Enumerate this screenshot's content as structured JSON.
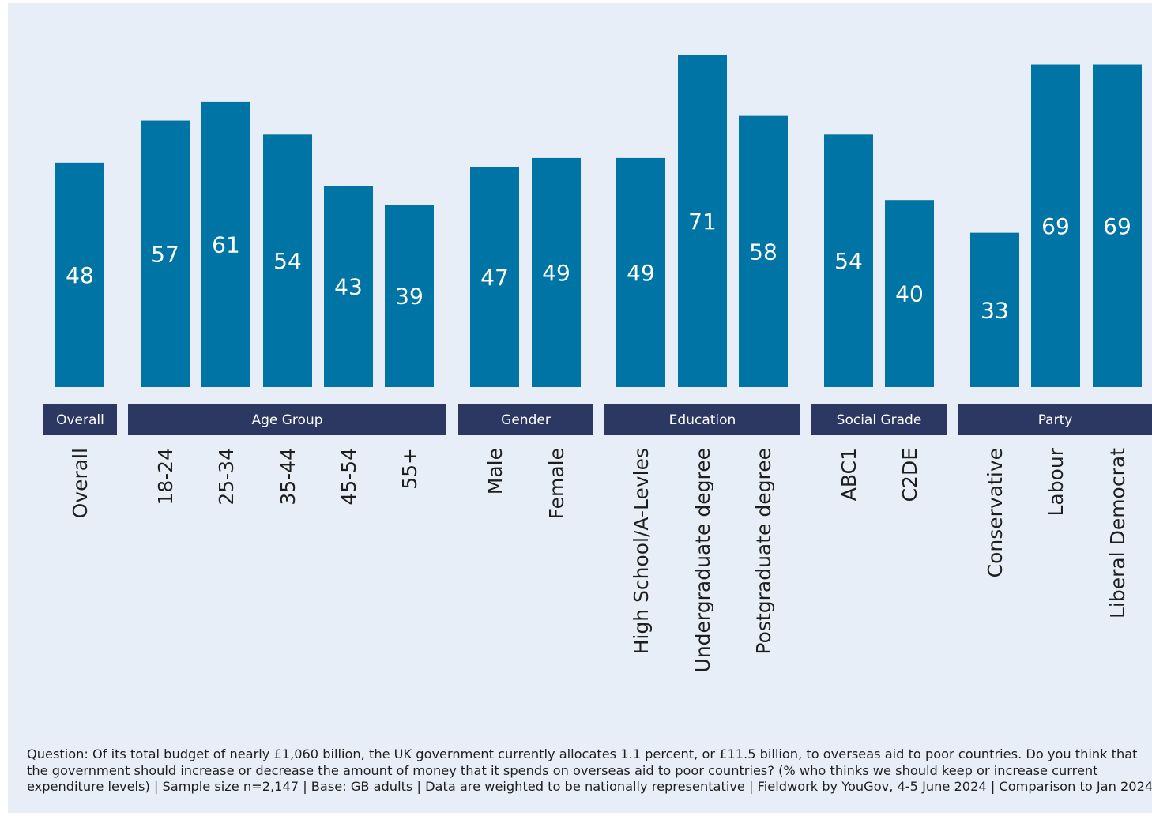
{
  "chart_data": {
    "type": "bar",
    "title": "",
    "xlabel": "",
    "ylabel": "",
    "ylim": [
      0,
      75
    ],
    "grid": false,
    "bar_color": "#0075a5",
    "group_color": "#2d3862",
    "categories": [
      "Overall",
      "18-24",
      "25-34",
      "35-44",
      "45-54",
      "55+",
      "Male",
      "Female",
      "High School/A-Levles",
      "Undergraduate degree",
      "Postgraduate degree",
      "ABC1",
      "C2DE",
      "Conservative",
      "Labour",
      "Liberal Democrat"
    ],
    "values": [
      48,
      57,
      61,
      54,
      43,
      39,
      47,
      49,
      49,
      71,
      58,
      54,
      40,
      33,
      69,
      69
    ],
    "groups": [
      {
        "name": "Overall",
        "members": [
          "Overall"
        ]
      },
      {
        "name": "Age Group",
        "members": [
          "18-24",
          "25-34",
          "35-44",
          "45-54",
          "55+"
        ]
      },
      {
        "name": "Gender",
        "members": [
          "Male",
          "Female"
        ]
      },
      {
        "name": "Education",
        "members": [
          "High School/A-Levles",
          "Undergraduate degree",
          "Postgraduate degree"
        ]
      },
      {
        "name": "Social Grade",
        "members": [
          "ABC1",
          "C2DE"
        ]
      },
      {
        "name": "Party",
        "members": [
          "Conservative",
          "Labour",
          "Liberal Democrat"
        ]
      }
    ]
  },
  "footnote": "Question: Of its total budget of nearly £1,060 billion, the UK government currently allocates 1.1 percent, or £11.5 billion, to overseas aid to poor countries. Do you think that the government should increase or decrease the amount of money that it spends on overseas aid to poor countries? (% who thinks we should keep or increase current expenditure levels) | Sample size n=2,147 | Base: GB adults | Data are weighted to be nationally representative | Fieldwork by YouGov, 4-5 June 2024 | Comparison to Jan 2024"
}
